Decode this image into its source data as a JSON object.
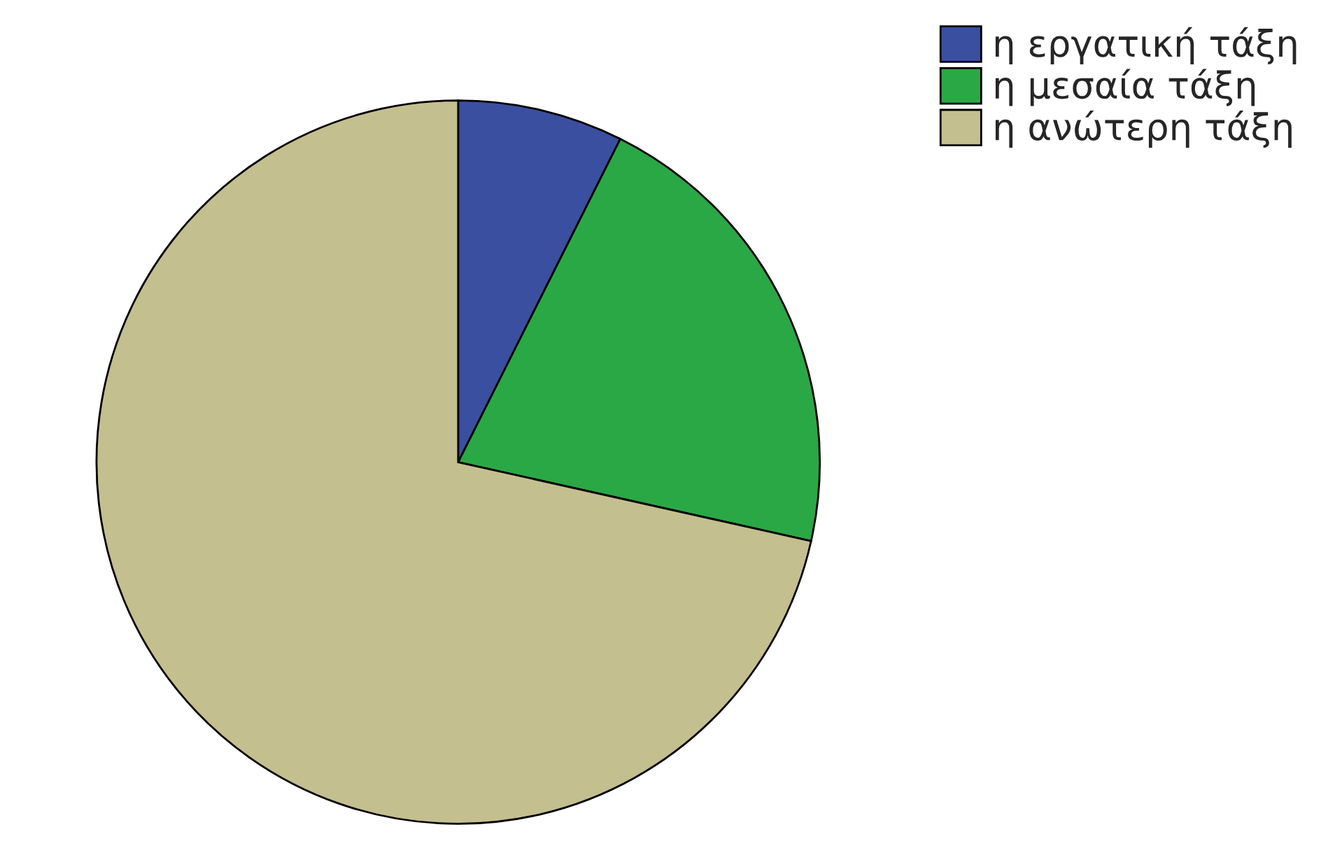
{
  "chart_data": {
    "type": "pie",
    "categories": [
      "η εργατική τάξη",
      "η μεσαία τάξη",
      "η ανώτερη τάξη"
    ],
    "values": [
      7.4,
      21.1,
      71.5
    ],
    "colors": [
      "#3a4fa0",
      "#2aa845",
      "#c4bf8f"
    ],
    "legend": "top right"
  }
}
